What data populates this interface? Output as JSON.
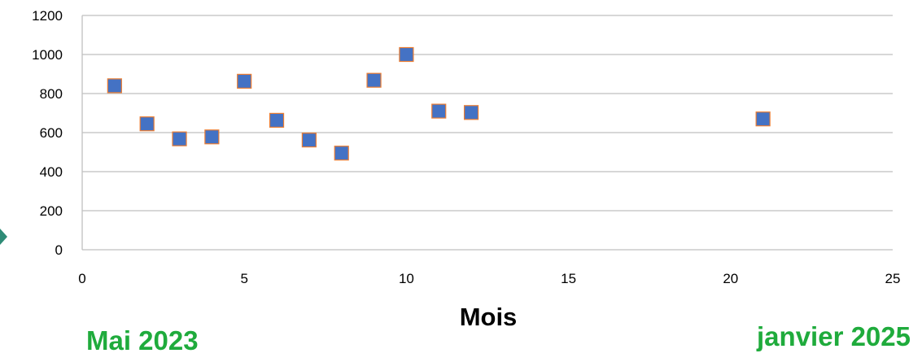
{
  "chart_data": {
    "type": "scatter",
    "title": "",
    "xlabel": "Mois",
    "ylabel": "",
    "xlim": [
      0,
      25
    ],
    "ylim": [
      0,
      1200
    ],
    "x_ticks": [
      0,
      5,
      10,
      15,
      20,
      25
    ],
    "y_ticks": [
      0,
      200,
      400,
      600,
      800,
      1000,
      1200
    ],
    "grid": "horizontal",
    "legend": "none",
    "series": [
      {
        "x": [
          1,
          2,
          3,
          4,
          5,
          6,
          7,
          8,
          9,
          10,
          11,
          12,
          21
        ],
        "y": [
          840,
          645,
          568,
          578,
          863,
          663,
          562,
          495,
          868,
          1000,
          710,
          703,
          670
        ]
      }
    ],
    "colors": {
      "marker_fill": "#4472c4",
      "marker_edge": "#ed7d31",
      "grid": "#bfbfbf",
      "annotation": "#1fab3c"
    }
  },
  "annotations": {
    "start_label": "Mai 2023",
    "end_label": "janvier 2025"
  },
  "decorations": {
    "left_edge_icon": "diamond-arrow-icon",
    "left_edge_icon_color": "#2e8b76"
  }
}
